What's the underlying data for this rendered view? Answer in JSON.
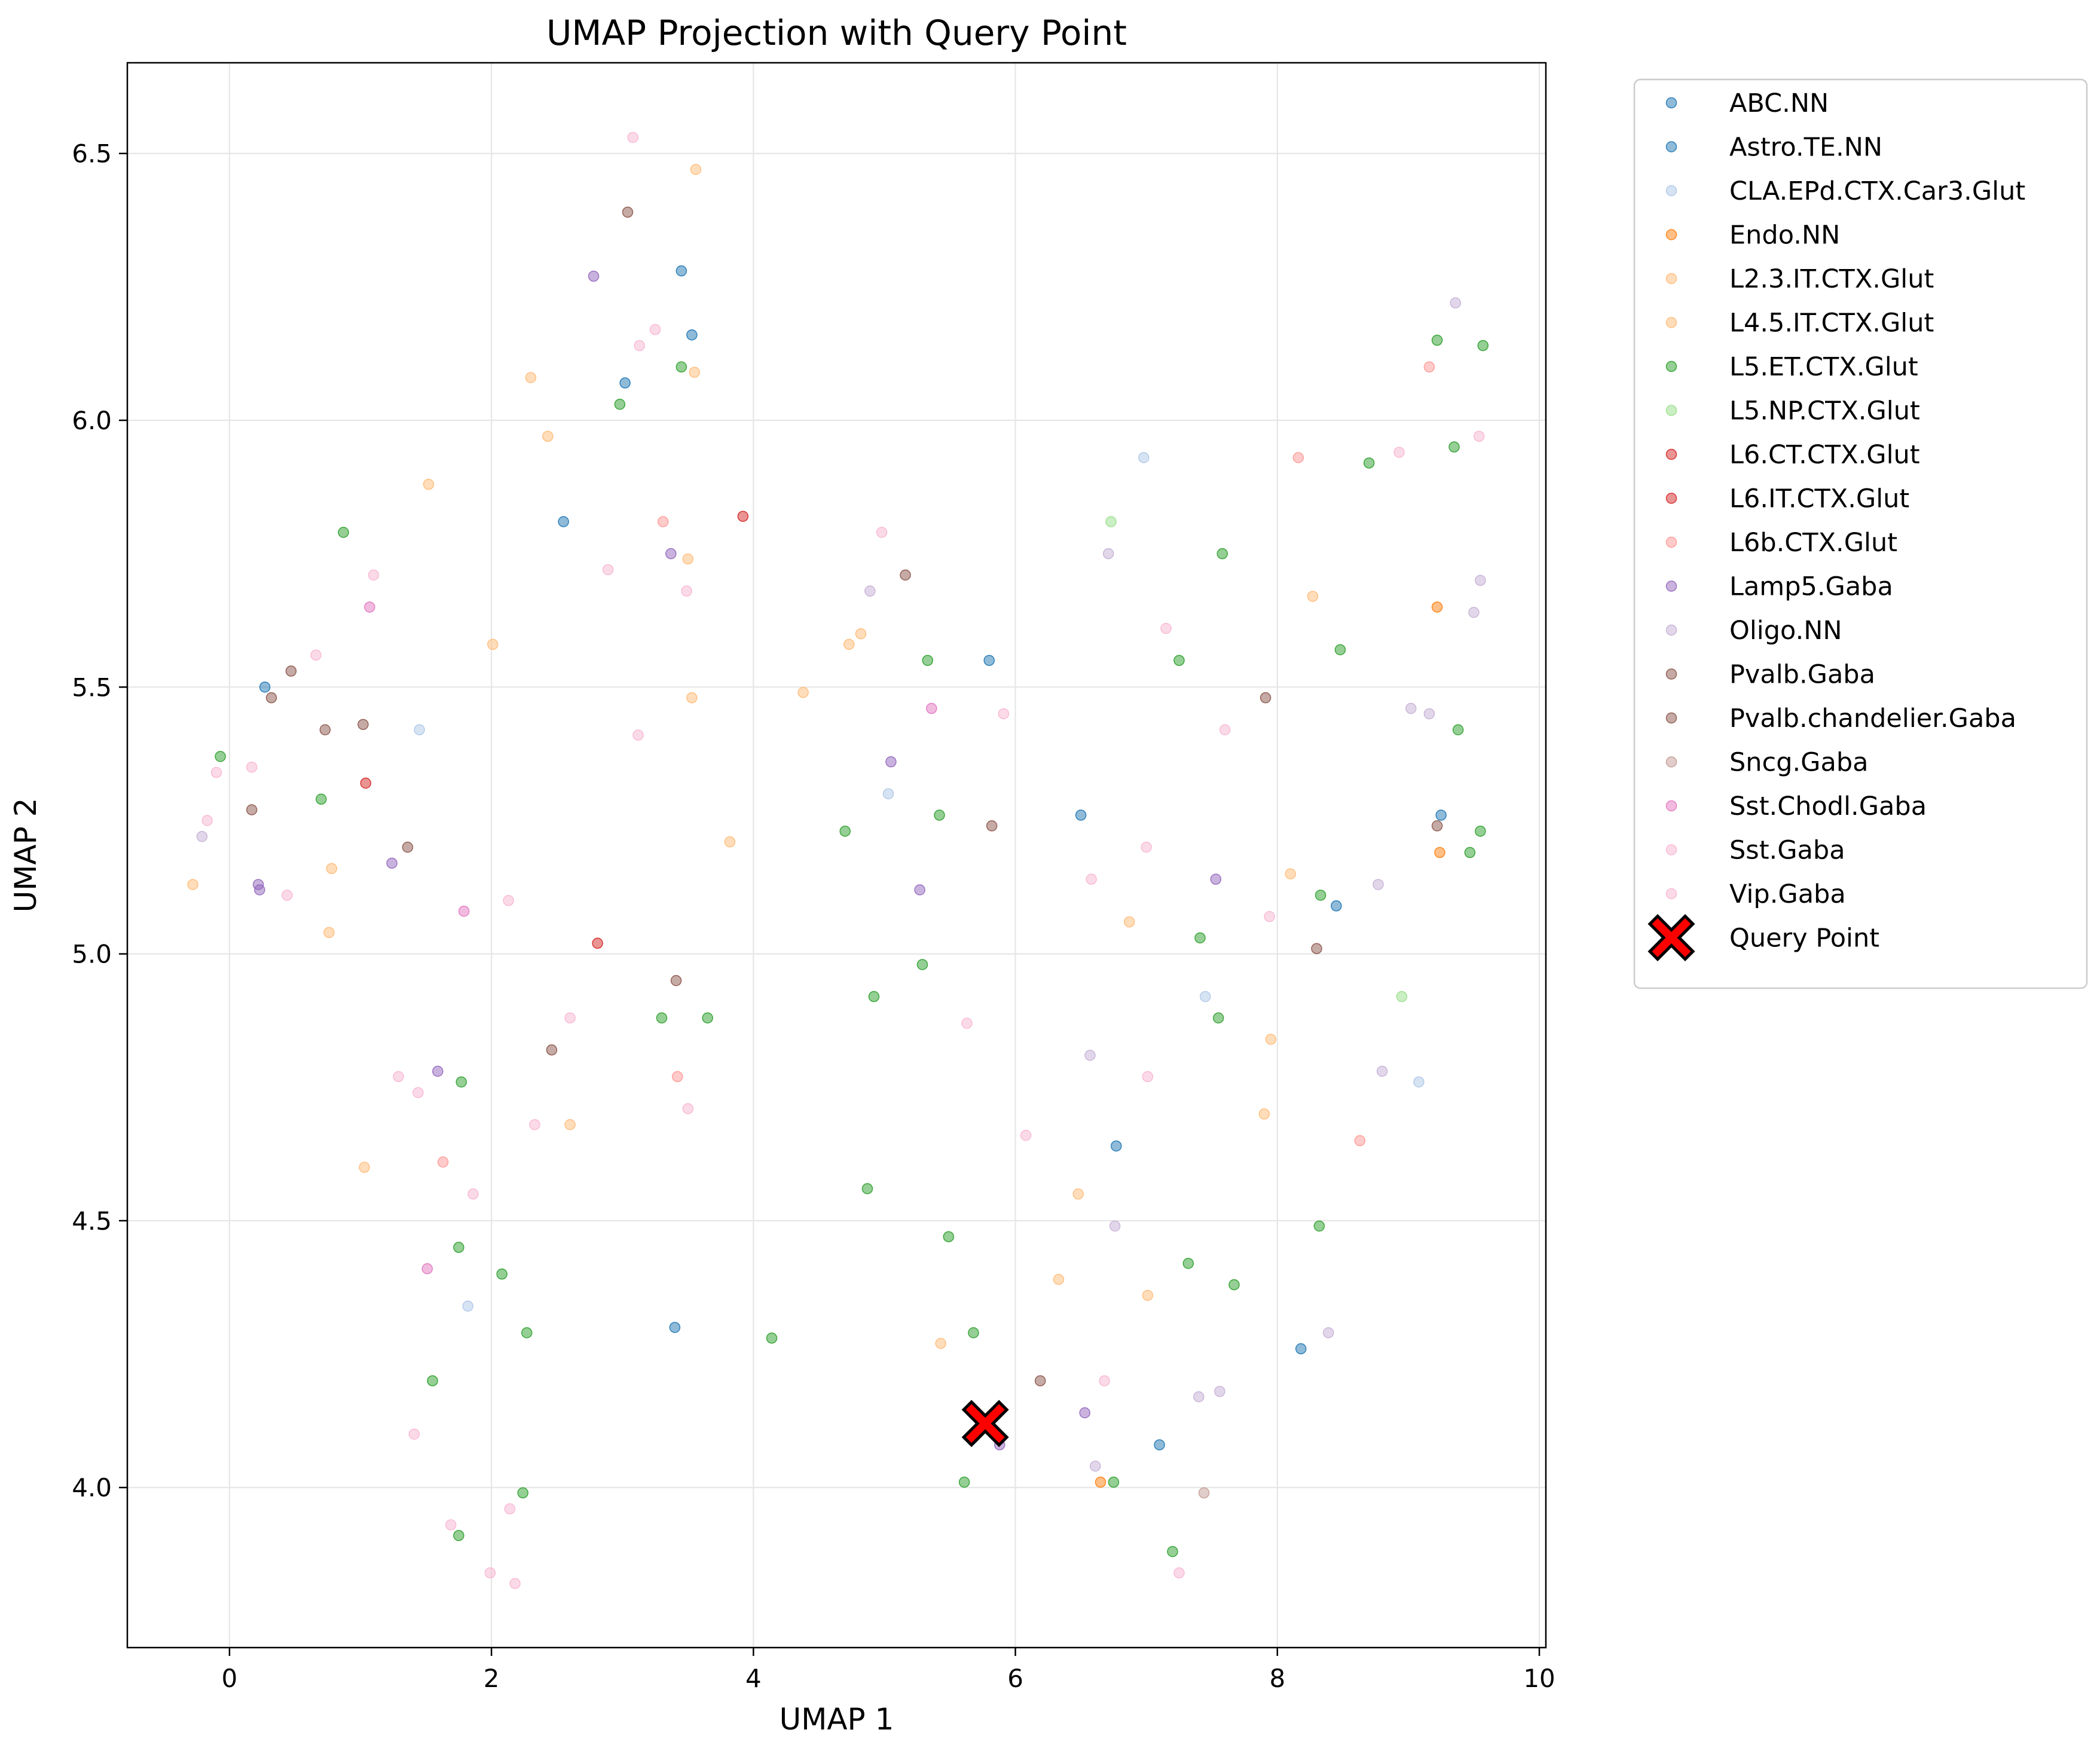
{
  "chart_data": {
    "type": "scatter",
    "title": "UMAP Projection with Query Point",
    "xlabel": "UMAP 1",
    "ylabel": "UMAP 2",
    "xlim": [
      -0.78,
      10.05
    ],
    "ylim": [
      3.7,
      6.67
    ],
    "xticks": [
      0,
      2,
      4,
      6,
      8,
      10
    ],
    "yticks": [
      4.0,
      4.5,
      5.0,
      5.5,
      6.0,
      6.5
    ],
    "xtick_labels": [
      "0",
      "2",
      "4",
      "6",
      "8",
      "10"
    ],
    "ytick_labels": [
      "4.0",
      "4.5",
      "5.0",
      "5.5",
      "6.0",
      "6.5"
    ],
    "grid": true,
    "legend_position": "outside-right",
    "series": [
      {
        "name": "ABC.NN",
        "color": "#1f77b4",
        "points": [
          [
            3.45,
            6.28
          ],
          [
            3.02,
            6.07
          ],
          [
            0.27,
            5.5
          ],
          [
            6.5,
            5.26
          ],
          [
            7.1,
            4.08
          ],
          [
            3.4,
            4.3
          ]
        ]
      },
      {
        "name": "Astro.TE.NN",
        "color": "#1f77b4",
        "points": [
          [
            3.53,
            6.16
          ],
          [
            2.55,
            5.81
          ],
          [
            5.8,
            5.55
          ],
          [
            9.25,
            5.26
          ],
          [
            8.45,
            5.09
          ],
          [
            6.77,
            4.64
          ],
          [
            8.18,
            4.26
          ]
        ]
      },
      {
        "name": "CLA.EPd.CTX.Car3.Glut",
        "color": "#aec7e8",
        "points": [
          [
            1.45,
            5.42
          ],
          [
            5.03,
            5.3
          ],
          [
            6.98,
            5.93
          ],
          [
            9.08,
            4.76
          ],
          [
            1.82,
            4.34
          ],
          [
            7.45,
            4.92
          ]
        ]
      },
      {
        "name": "Endo.NN",
        "color": "#ff7f0e",
        "points": [
          [
            9.22,
            5.65
          ],
          [
            9.24,
            5.19
          ],
          [
            6.65,
            4.01
          ]
        ]
      },
      {
        "name": "L2.3.IT.CTX.Glut",
        "color": "#ffbb78",
        "points": [
          [
            1.52,
            5.88
          ],
          [
            2.43,
            5.97
          ],
          [
            3.55,
            6.09
          ],
          [
            3.53,
            5.48
          ],
          [
            4.38,
            5.49
          ],
          [
            4.73,
            5.58
          ],
          [
            3.82,
            5.21
          ],
          [
            0.78,
            5.16
          ],
          [
            -0.28,
            5.13
          ],
          [
            8.1,
            5.15
          ],
          [
            7.95,
            4.84
          ],
          [
            7.9,
            4.7
          ],
          [
            6.48,
            4.55
          ],
          [
            6.33,
            4.39
          ],
          [
            7.01,
            4.36
          ],
          [
            5.43,
            4.27
          ],
          [
            1.03,
            4.6
          ],
          [
            2.6,
            4.68
          ]
        ]
      },
      {
        "name": "L4.5.IT.CTX.Glut",
        "color": "#ffbb78",
        "points": [
          [
            3.56,
            6.47
          ],
          [
            2.3,
            6.08
          ],
          [
            3.5,
            5.74
          ],
          [
            2.01,
            5.58
          ],
          [
            4.82,
            5.6
          ],
          [
            8.27,
            5.67
          ],
          [
            6.87,
            5.06
          ],
          [
            0.76,
            5.04
          ]
        ]
      },
      {
        "name": "L5.ET.CTX.Glut",
        "color": "#2ca02c",
        "points": [
          [
            0.87,
            5.79
          ],
          [
            3.45,
            6.1
          ],
          [
            2.98,
            6.03
          ],
          [
            -0.07,
            5.37
          ],
          [
            0.7,
            5.29
          ],
          [
            5.33,
            5.55
          ],
          [
            7.25,
            5.55
          ],
          [
            4.7,
            5.23
          ],
          [
            5.42,
            5.26
          ],
          [
            7.58,
            5.75
          ],
          [
            8.7,
            5.92
          ],
          [
            9.35,
            5.95
          ],
          [
            9.22,
            6.15
          ],
          [
            9.57,
            6.14
          ],
          [
            8.48,
            5.57
          ],
          [
            9.38,
            5.42
          ],
          [
            9.47,
            5.19
          ],
          [
            9.55,
            5.23
          ],
          [
            8.33,
            5.11
          ],
          [
            7.41,
            5.03
          ],
          [
            5.29,
            4.98
          ],
          [
            4.92,
            4.92
          ],
          [
            7.55,
            4.88
          ],
          [
            3.3,
            4.88
          ],
          [
            3.65,
            4.88
          ],
          [
            1.77,
            4.76
          ],
          [
            4.87,
            4.56
          ],
          [
            5.49,
            4.47
          ],
          [
            1.75,
            4.45
          ],
          [
            2.08,
            4.4
          ],
          [
            7.32,
            4.42
          ],
          [
            7.67,
            4.38
          ],
          [
            8.32,
            4.49
          ],
          [
            2.27,
            4.29
          ],
          [
            4.14,
            4.28
          ],
          [
            5.68,
            4.29
          ],
          [
            1.55,
            4.2
          ],
          [
            5.61,
            4.01
          ],
          [
            6.75,
            4.01
          ],
          [
            2.24,
            3.99
          ],
          [
            1.75,
            3.91
          ],
          [
            7.2,
            3.88
          ]
        ]
      },
      {
        "name": "L5.NP.CTX.Glut",
        "color": "#98df8a",
        "points": [
          [
            6.73,
            5.81
          ],
          [
            8.95,
            4.92
          ]
        ]
      },
      {
        "name": "L6.CT.CTX.Glut",
        "color": "#d62728",
        "points": [
          [
            3.92,
            5.82
          ],
          [
            1.04,
            5.32
          ],
          [
            2.81,
            5.02
          ]
        ]
      },
      {
        "name": "L6.IT.CTX.Glut",
        "color": "#d62728",
        "points": []
      },
      {
        "name": "L6b.CTX.Glut",
        "color": "#ff9896",
        "points": [
          [
            3.31,
            5.81
          ],
          [
            8.16,
            5.93
          ],
          [
            9.16,
            6.1
          ],
          [
            1.63,
            4.61
          ],
          [
            8.63,
            4.65
          ],
          [
            3.42,
            4.77
          ]
        ]
      },
      {
        "name": "Lamp5.Gaba",
        "color": "#9467bd",
        "points": [
          [
            2.78,
            6.27
          ],
          [
            3.37,
            5.75
          ],
          [
            5.05,
            5.36
          ],
          [
            5.27,
            5.12
          ],
          [
            1.24,
            5.17
          ],
          [
            0.22,
            5.13
          ],
          [
            0.23,
            5.12
          ],
          [
            7.53,
            5.14
          ],
          [
            1.59,
            4.78
          ],
          [
            6.53,
            4.14
          ],
          [
            5.88,
            4.08
          ]
        ]
      },
      {
        "name": "Oligo.NN",
        "color": "#c5b0d5",
        "points": [
          [
            4.89,
            5.68
          ],
          [
            6.71,
            5.75
          ],
          [
            9.36,
            6.22
          ],
          [
            9.55,
            5.7
          ],
          [
            9.5,
            5.64
          ],
          [
            9.02,
            5.46
          ],
          [
            9.16,
            5.45
          ],
          [
            8.77,
            5.13
          ],
          [
            -0.21,
            5.22
          ],
          [
            8.8,
            4.78
          ],
          [
            6.57,
            4.81
          ],
          [
            6.76,
            4.49
          ],
          [
            8.39,
            4.29
          ],
          [
            7.56,
            4.18
          ],
          [
            7.4,
            4.17
          ],
          [
            6.61,
            4.04
          ]
        ]
      },
      {
        "name": "Pvalb.Gaba",
        "color": "#8c564b",
        "points": [
          [
            3.04,
            6.39
          ],
          [
            5.16,
            5.71
          ],
          [
            0.47,
            5.53
          ],
          [
            0.32,
            5.48
          ],
          [
            0.73,
            5.42
          ],
          [
            1.02,
            5.43
          ],
          [
            0.17,
            5.27
          ],
          [
            1.36,
            5.2
          ],
          [
            5.82,
            5.24
          ],
          [
            9.22,
            5.24
          ],
          [
            7.91,
            5.48
          ],
          [
            3.41,
            4.95
          ],
          [
            2.46,
            4.82
          ],
          [
            8.3,
            5.01
          ],
          [
            6.19,
            4.2
          ]
        ]
      },
      {
        "name": "Pvalb.chandelier.Gaba",
        "color": "#8c564b",
        "points": []
      },
      {
        "name": "Sncg.Gaba",
        "color": "#c49c94",
        "points": [
          [
            7.44,
            3.99
          ]
        ]
      },
      {
        "name": "Sst.Chodl.Gaba",
        "color": "#e377c2",
        "points": [
          [
            1.07,
            5.65
          ],
          [
            5.36,
            5.46
          ],
          [
            1.79,
            5.08
          ],
          [
            1.51,
            4.41
          ]
        ]
      },
      {
        "name": "Sst.Gaba",
        "color": "#f7b6d2",
        "points": [
          [
            3.08,
            6.53
          ],
          [
            3.25,
            6.17
          ],
          [
            3.13,
            6.14
          ],
          [
            1.1,
            5.71
          ],
          [
            0.66,
            5.56
          ],
          [
            2.89,
            5.72
          ],
          [
            3.49,
            5.68
          ],
          [
            4.98,
            5.79
          ],
          [
            5.91,
            5.45
          ],
          [
            3.12,
            5.41
          ],
          [
            7.15,
            5.61
          ],
          [
            7.6,
            5.42
          ],
          [
            9.54,
            5.97
          ],
          [
            8.93,
            5.94
          ],
          [
            0.17,
            5.35
          ],
          [
            -0.1,
            5.34
          ],
          [
            -0.17,
            5.25
          ],
          [
            0.44,
            5.11
          ],
          [
            2.13,
            5.1
          ],
          [
            6.58,
            5.14
          ],
          [
            7.0,
            5.2
          ],
          [
            7.94,
            5.07
          ],
          [
            2.6,
            4.88
          ],
          [
            5.63,
            4.87
          ],
          [
            1.29,
            4.77
          ],
          [
            1.44,
            4.74
          ],
          [
            7.01,
            4.77
          ],
          [
            3.5,
            4.71
          ],
          [
            2.33,
            4.68
          ],
          [
            6.08,
            4.66
          ],
          [
            1.86,
            4.55
          ],
          [
            6.68,
            4.2
          ],
          [
            1.41,
            4.1
          ],
          [
            1.69,
            3.93
          ],
          [
            2.14,
            3.96
          ],
          [
            1.99,
            3.84
          ],
          [
            2.18,
            3.82
          ],
          [
            7.25,
            3.84
          ]
        ]
      },
      {
        "name": "Vip.Gaba",
        "color": "#f7b6d2",
        "points": []
      }
    ],
    "query_point": {
      "name": "Query Point",
      "x": 5.77,
      "y": 4.12,
      "color": "#ff0000"
    }
  }
}
